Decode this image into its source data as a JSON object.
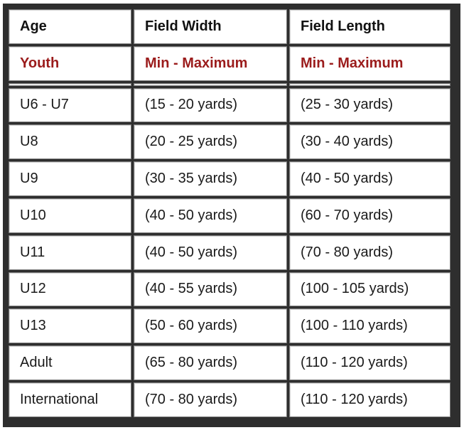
{
  "table": {
    "headers": [
      "Age",
      "Field Width",
      "Field Length"
    ],
    "subheaders": [
      "Youth",
      "Min - Maximum",
      "Min - Maximum"
    ],
    "blank_row": [
      "",
      "",
      ""
    ],
    "rows": [
      [
        "U6 - U7",
        "(15 - 20 yards)",
        "(25 - 30 yards)"
      ],
      [
        "U8",
        "(20 - 25 yards)",
        "(30 - 40 yards)"
      ],
      [
        "U9",
        "(30 - 35 yards)",
        "(40 - 50 yards)"
      ],
      [
        "U10",
        "(40 - 50 yards)",
        "(60 - 70 yards)"
      ],
      [
        "U11",
        "(40 - 50 yards)",
        "(70 - 80 yards)"
      ],
      [
        "U12",
        "(40 - 55 yards)",
        "(100 - 105 yards)"
      ],
      [
        "U13",
        "(50 - 60 yards)",
        "(100 - 110 yards)"
      ],
      [
        "Adult",
        "(65 - 80 yards)",
        "(110 - 120 yards)"
      ],
      [
        "International",
        "(70 - 80 yards)",
        "(110 - 120 yards)"
      ]
    ]
  },
  "colors": {
    "frame": "#2e2e2e",
    "subheader_text": "#9b1c1c",
    "cell_background": "#ffffff",
    "text": "#1a1a1a"
  }
}
